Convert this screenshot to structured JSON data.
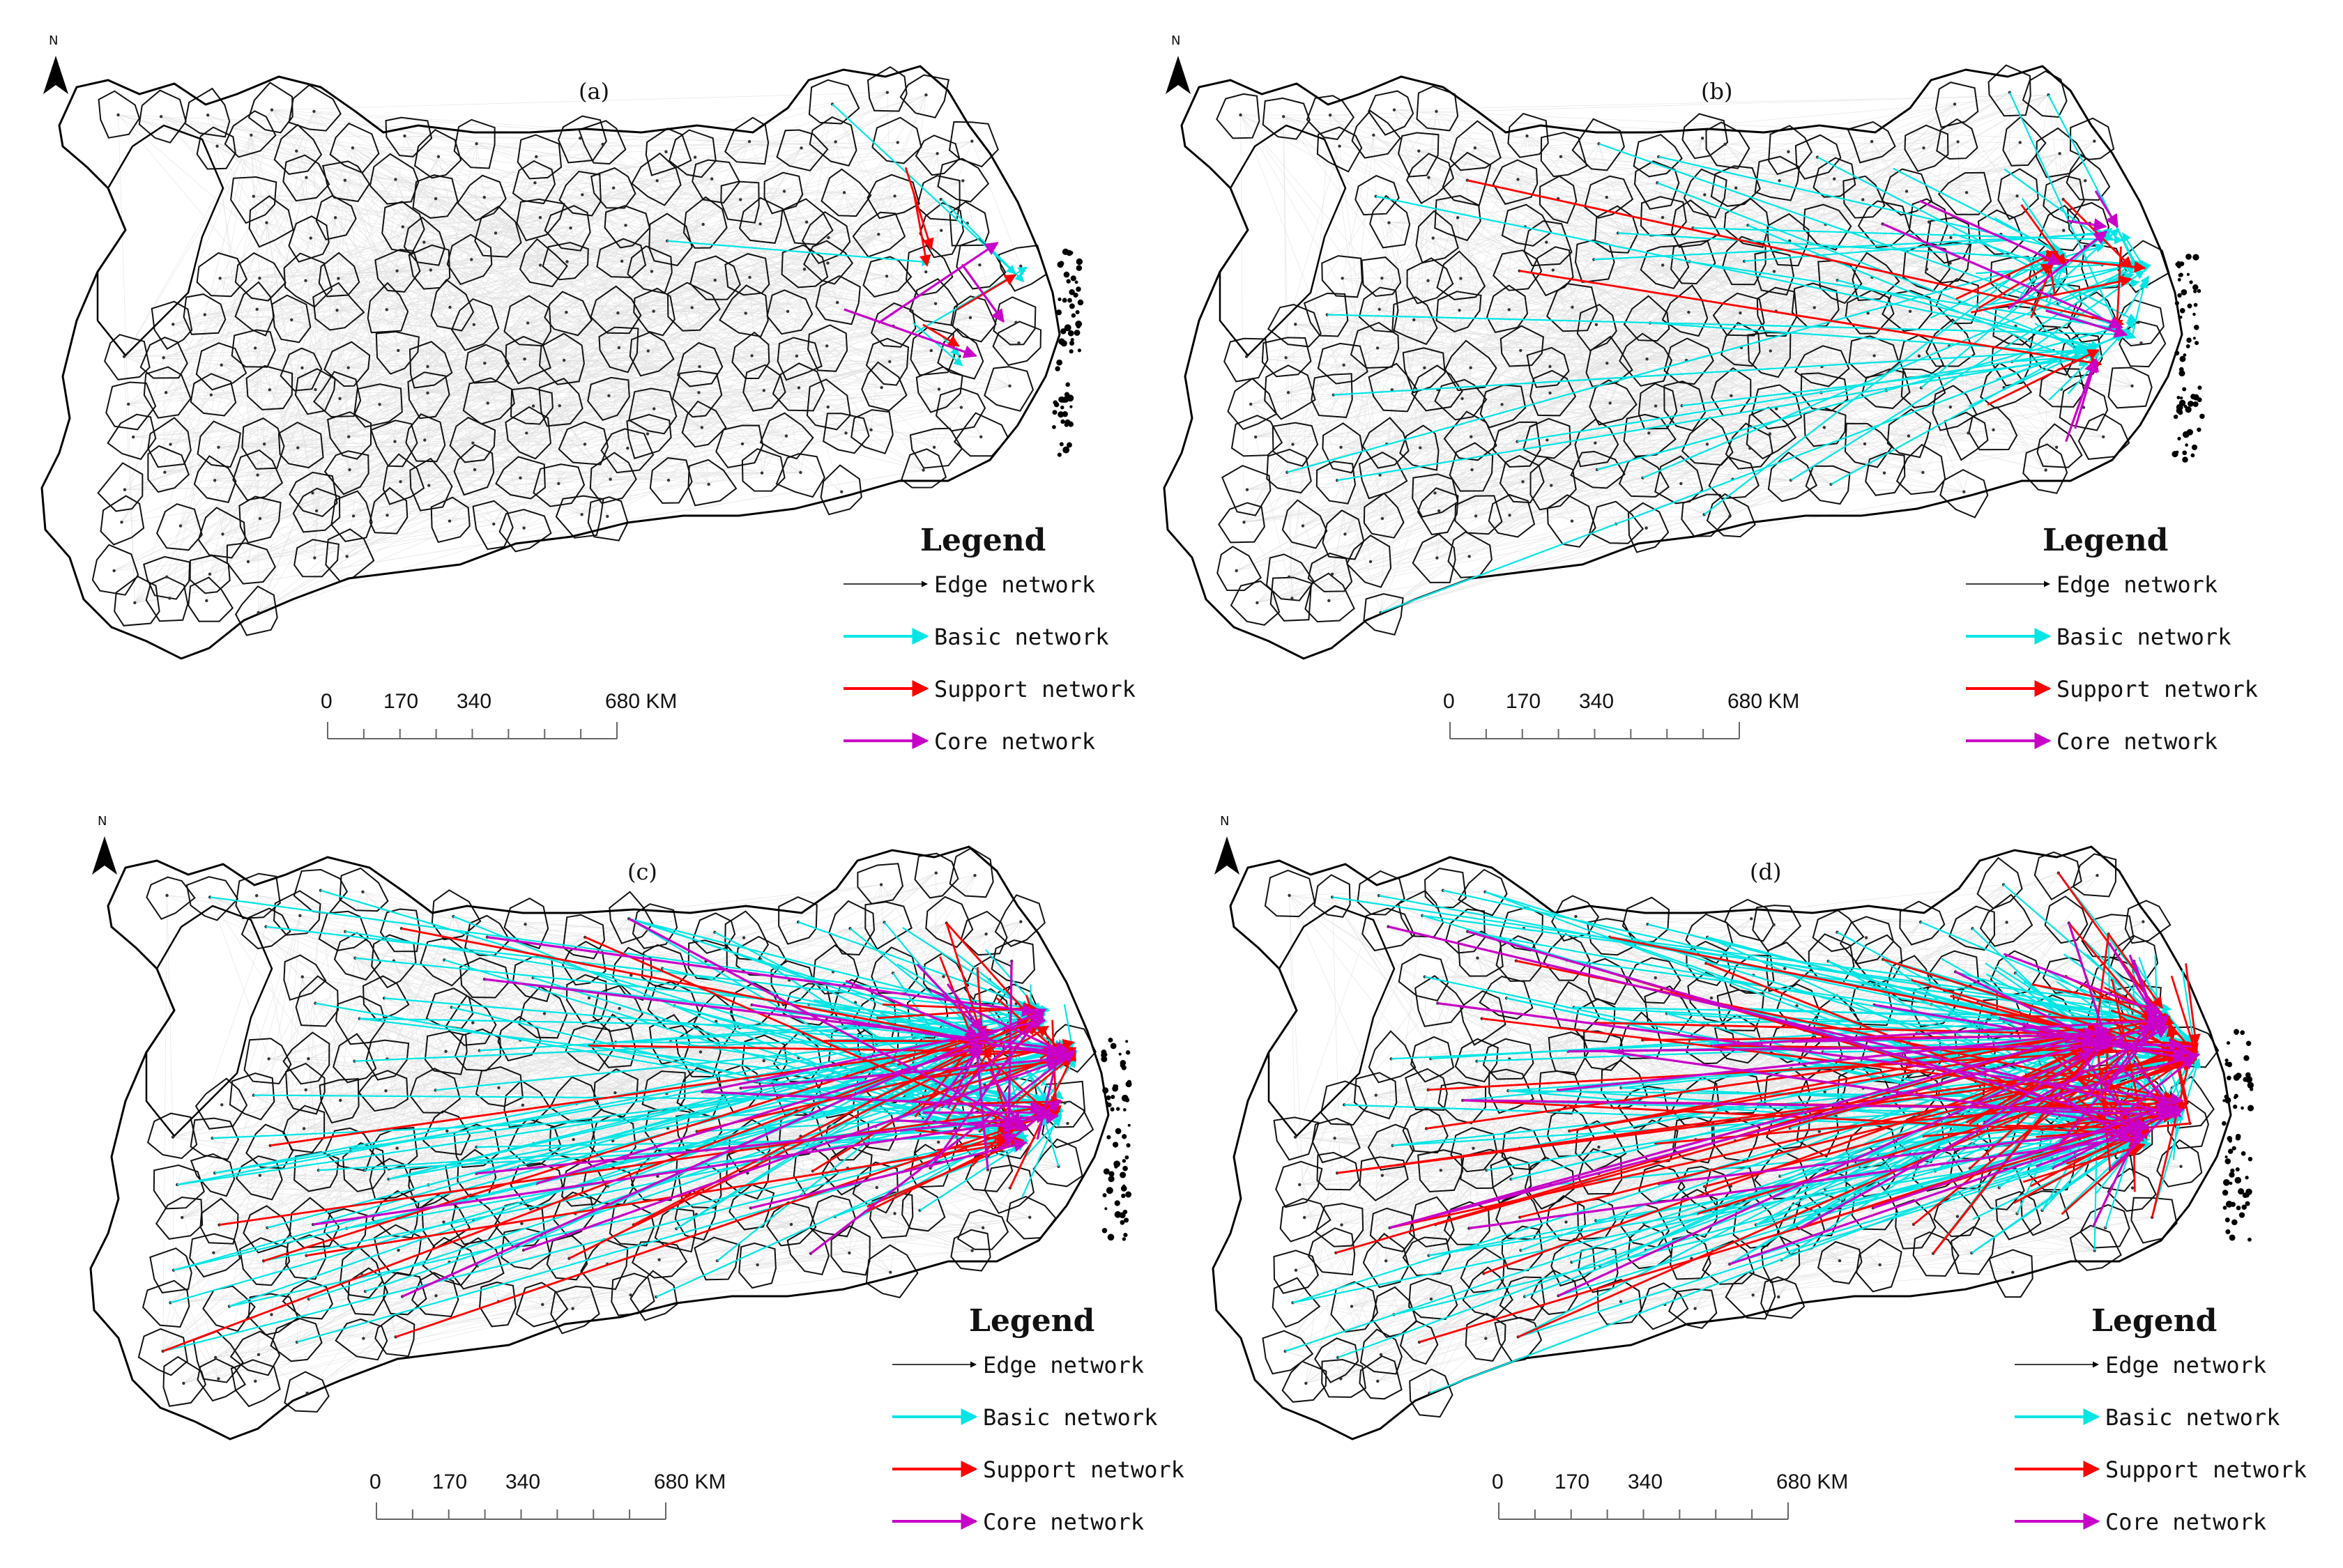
{
  "north_label": "N",
  "panels": [
    {
      "id": "a",
      "label": "(a)",
      "density": 1
    },
    {
      "id": "b",
      "label": "(b)",
      "density": 2
    },
    {
      "id": "c",
      "label": "(c)",
      "density": 3
    },
    {
      "id": "d",
      "label": "(d)",
      "density": 4
    }
  ],
  "legend": {
    "title": "Legend",
    "items": [
      {
        "label": "Edge network",
        "color": "#000000"
      },
      {
        "label": "Basic network",
        "color": "#00e5e5"
      },
      {
        "label": "Support network",
        "color": "#ff0000"
      },
      {
        "label": "Core network",
        "color": "#c800c8"
      }
    ]
  },
  "scale_bar": {
    "ticks": [
      "0",
      "170",
      "340",
      "680 KM"
    ]
  }
}
